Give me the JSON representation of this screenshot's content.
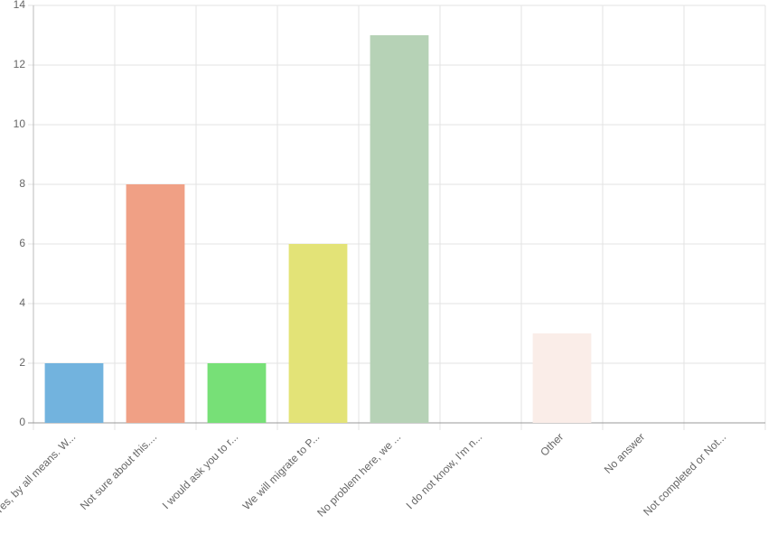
{
  "chart_data": {
    "type": "bar",
    "categories": [
      "Yes, by all means. W...",
      "Not sure about this....",
      "I would ask you to r...",
      "We will migrate to P...",
      "No problem here, we ...",
      "I do not know, I'm n...",
      "Other",
      "No answer",
      "Not completed or Not..."
    ],
    "values": [
      2,
      8,
      2,
      6,
      13,
      0,
      3,
      0,
      0
    ],
    "colors": [
      "#72b3de",
      "#f0a085",
      "#77e077",
      "#e3e377",
      "#b6d2b6",
      null,
      "#faede8",
      null,
      null
    ],
    "ylim": [
      0,
      14
    ],
    "yticks": [
      0,
      2,
      4,
      6,
      8,
      10,
      12,
      14
    ],
    "grid": true
  }
}
